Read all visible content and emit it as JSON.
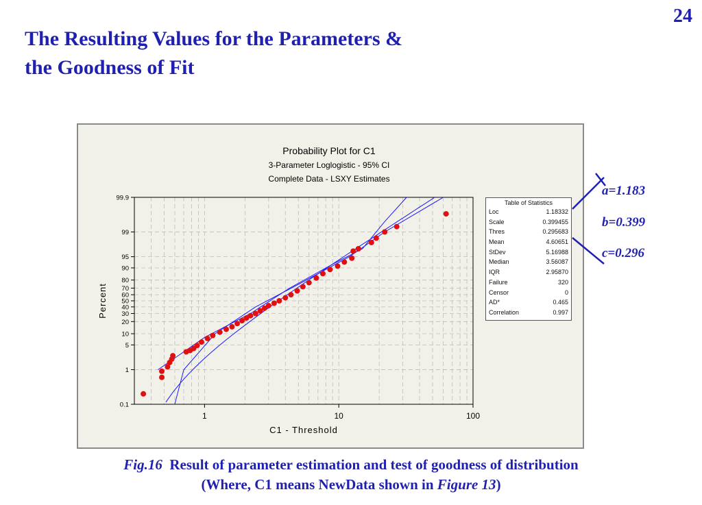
{
  "slide": {
    "number": "24",
    "title_line1": "The Resulting Values for the Parameters &",
    "title_line2": "the Goodness of Fit"
  },
  "annotations": {
    "a": "a=1.183",
    "b": "b=0.399",
    "c": "c=0.296"
  },
  "caption": {
    "fig_label": "Fig.16",
    "line1": "Result of parameter estimation and test of goodness of distribution",
    "line2_prefix": "(Where, C1 means NewData shown in ",
    "line2_fig": "Figure 13",
    "line2_suffix": ")"
  },
  "colors": {
    "accent": "#1f1fb0",
    "points": "#e01010",
    "fit_lines": "#1a1aff",
    "grid": "#bdbdbd"
  },
  "chart_data": {
    "type": "scatter",
    "title": "Probability Plot for C1",
    "subtitle1": "3-Parameter Loglogistic - 95% CI",
    "subtitle2": "Complete Data - LSXY Estimates",
    "xlabel": "C1 - Threshold",
    "ylabel": "Percent",
    "x_scale": "log",
    "xlim": [
      0.3,
      100
    ],
    "x_ticks": [
      1,
      10,
      100
    ],
    "y_scale": "logistic probability",
    "ylim": [
      0.1,
      99.9
    ],
    "y_ticks": [
      0.1,
      1,
      5,
      10,
      20,
      30,
      40,
      50,
      60,
      70,
      80,
      90,
      95,
      99,
      99.9
    ],
    "grid": true,
    "legend": "table of statistics, right",
    "fit_line": {
      "threshold": 0.295683,
      "loc": 1.18332,
      "scale": 0.399455
    },
    "ci_band": {
      "lower": [
        [
          0.6,
          0.1
        ],
        [
          0.7,
          1
        ],
        [
          1.2,
          10
        ],
        [
          2.4,
          40
        ],
        [
          5,
          75
        ],
        [
          12,
          95
        ],
        [
          22,
          99
        ],
        [
          60,
          99.9
        ]
      ],
      "upper": [
        [
          0.45,
          1
        ],
        [
          1.0,
          8
        ],
        [
          2.2,
          30
        ],
        [
          4.3,
          70
        ],
        [
          9,
          92
        ],
        [
          15,
          97
        ],
        [
          22,
          99.5
        ],
        [
          32,
          99.9
        ]
      ]
    },
    "points": [
      [
        0.35,
        0.2
      ],
      [
        0.48,
        0.6
      ],
      [
        0.48,
        0.9
      ],
      [
        0.53,
        1.2
      ],
      [
        0.55,
        1.6
      ],
      [
        0.57,
        2.0
      ],
      [
        0.58,
        2.5
      ],
      [
        0.73,
        3.2
      ],
      [
        0.78,
        3.5
      ],
      [
        0.83,
        4.0
      ],
      [
        0.88,
        4.8
      ],
      [
        0.95,
        6
      ],
      [
        1.05,
        7.5
      ],
      [
        1.15,
        9
      ],
      [
        1.3,
        11
      ],
      [
        1.45,
        13
      ],
      [
        1.6,
        15
      ],
      [
        1.75,
        18
      ],
      [
        1.9,
        21
      ],
      [
        2.05,
        24
      ],
      [
        2.2,
        27
      ],
      [
        2.4,
        30
      ],
      [
        2.6,
        34
      ],
      [
        2.8,
        38
      ],
      [
        3.0,
        42
      ],
      [
        3.3,
        46
      ],
      [
        3.6,
        50
      ],
      [
        4.0,
        55
      ],
      [
        4.4,
        60
      ],
      [
        4.9,
        66
      ],
      [
        5.4,
        72
      ],
      [
        6.0,
        77
      ],
      [
        6.8,
        82
      ],
      [
        7.6,
        86
      ],
      [
        8.6,
        89
      ],
      [
        9.8,
        91
      ],
      [
        11,
        93
      ],
      [
        12.5,
        94.5
      ],
      [
        12.8,
        96.5
      ],
      [
        14,
        97
      ],
      [
        17.5,
        98
      ],
      [
        19,
        98.5
      ],
      [
        22,
        99.0
      ],
      [
        27,
        99.3
      ],
      [
        63,
        99.7
      ]
    ],
    "statistics": {
      "title": "Table of Statistics",
      "rows": [
        {
          "label": "Loc",
          "value": "1.18332"
        },
        {
          "label": "Scale",
          "value": "0.399455"
        },
        {
          "label": "Thres",
          "value": "0.295683"
        },
        {
          "label": "Mean",
          "value": "4.60651"
        },
        {
          "label": "StDev",
          "value": "5.16988"
        },
        {
          "label": "Median",
          "value": "3.56087"
        },
        {
          "label": "IQR",
          "value": "2.95870"
        },
        {
          "label": "Failure",
          "value": "320"
        },
        {
          "label": "Censor",
          "value": "0"
        },
        {
          "label": "AD*",
          "value": "0.465"
        },
        {
          "label": "Correlation",
          "value": "0.997"
        }
      ]
    }
  }
}
